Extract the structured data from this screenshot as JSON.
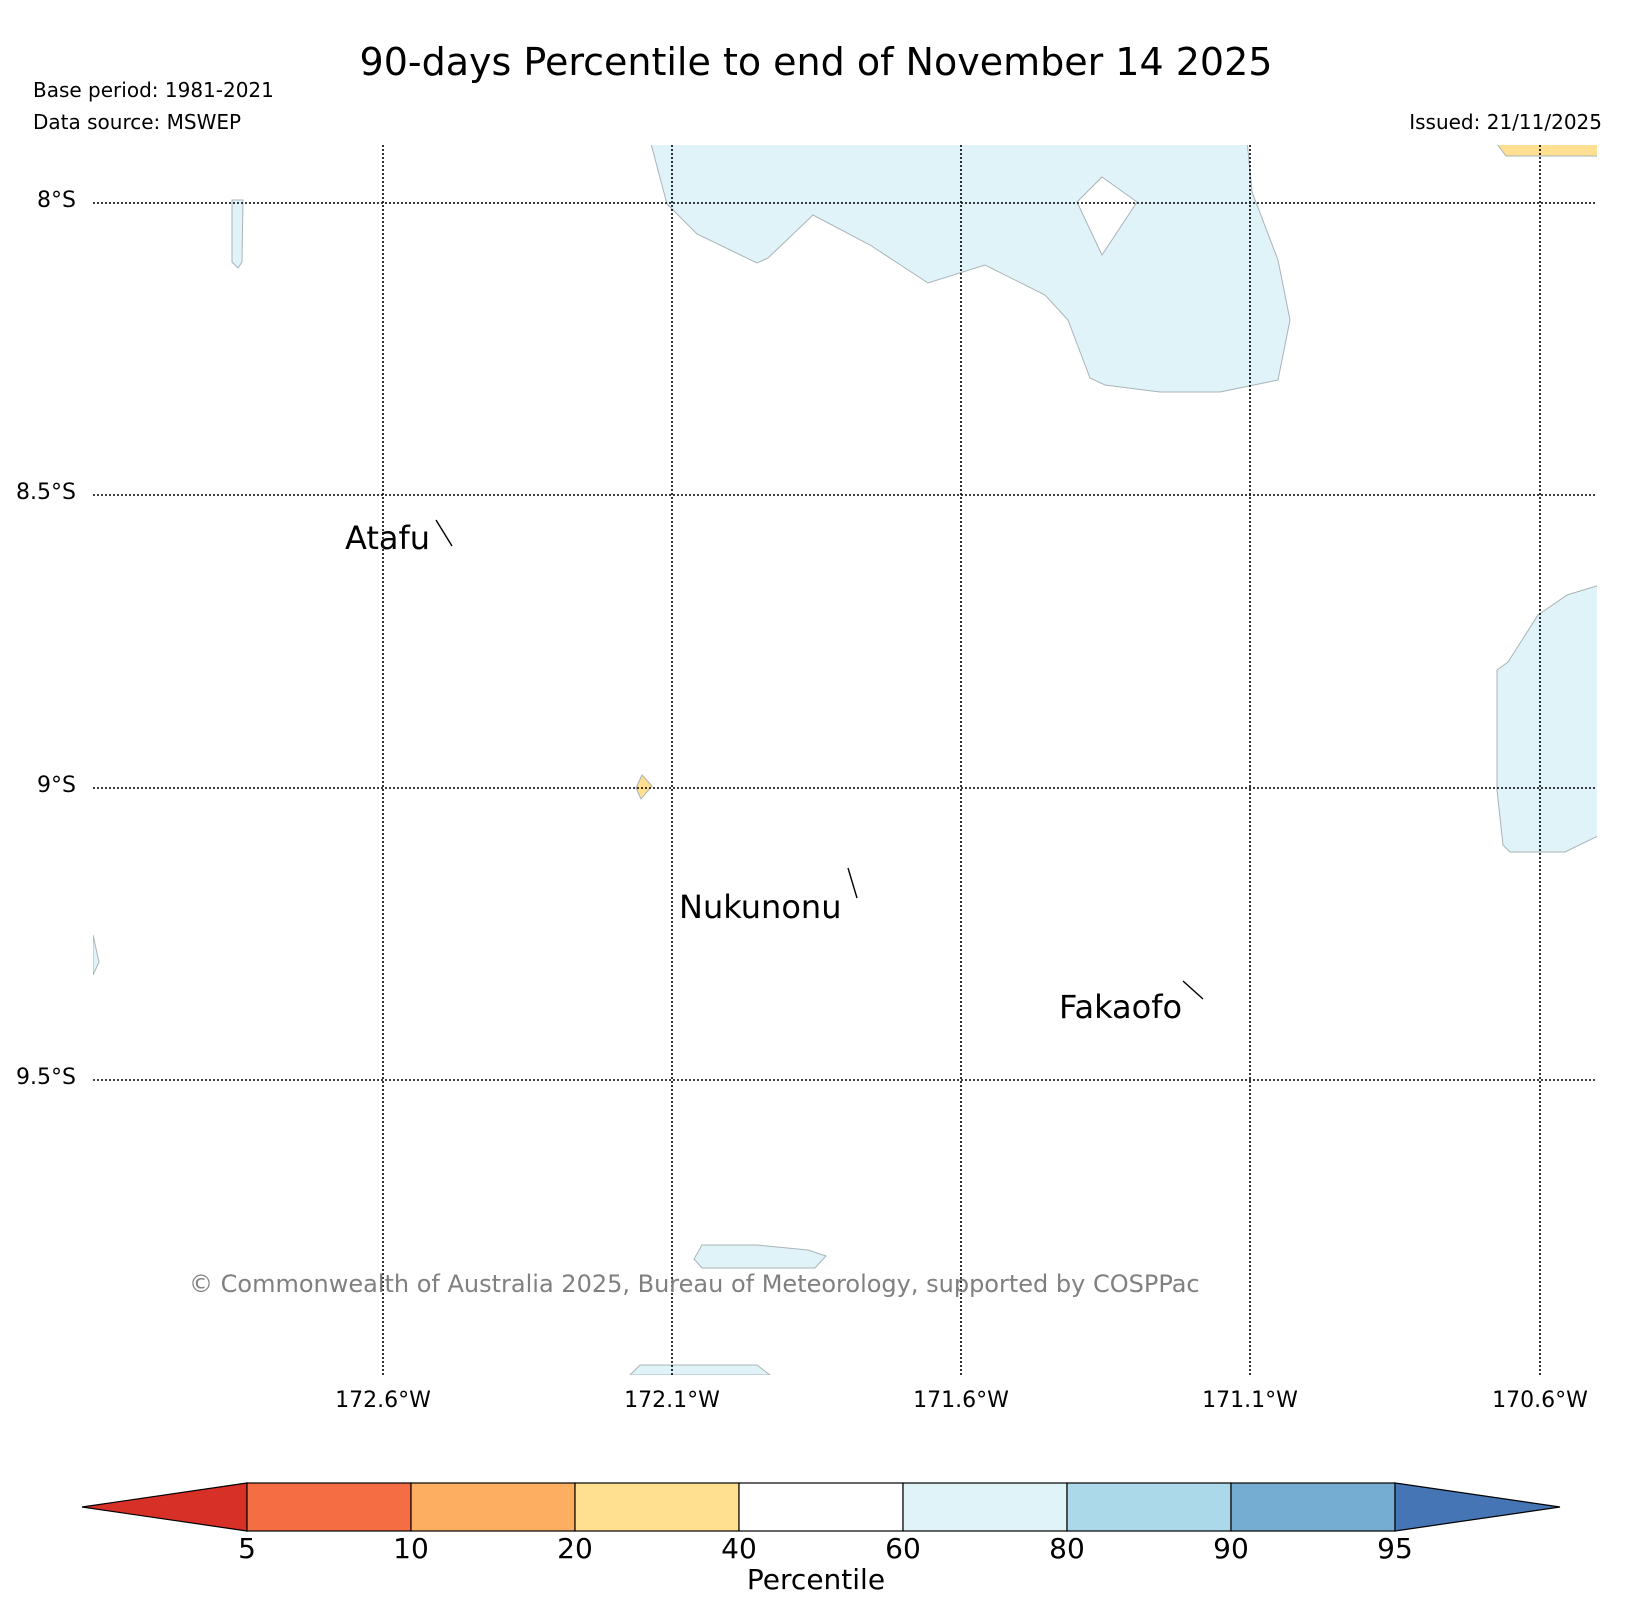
{
  "header": {
    "title": "90-days Percentile to end of November 14 2025",
    "base_period": "Base period: 1981-2021",
    "data_source": "Data source: MSWEP",
    "issued": "Issued: 21/11/2025"
  },
  "map": {
    "lat_labels": [
      "8°S",
      "8.5°S",
      "9°S",
      "9.5°S"
    ],
    "lon_labels": [
      "172.6°W",
      "172.1°W",
      "171.6°W",
      "171.1°W",
      "170.6°W"
    ],
    "places": [
      "Atafu",
      "Nukunonu",
      "Fakaofo"
    ],
    "copyright": "© Commonwealth of Australia 2025, Bureau of Meteorology, supported by COSPPac",
    "category_colors": {
      "20-40": "#fee090",
      "60-80": "#e0f3f8"
    }
  },
  "colorbar": {
    "label": "Percentile",
    "ticks": [
      "5",
      "10",
      "20",
      "40",
      "60",
      "80",
      "90",
      "95"
    ],
    "colors": [
      "#d73027",
      "#f46d43",
      "#fdae61",
      "#fee090",
      "#ffffff",
      "#e0f3f8",
      "#abd9e9",
      "#74add1",
      "#4575b4"
    ]
  }
}
